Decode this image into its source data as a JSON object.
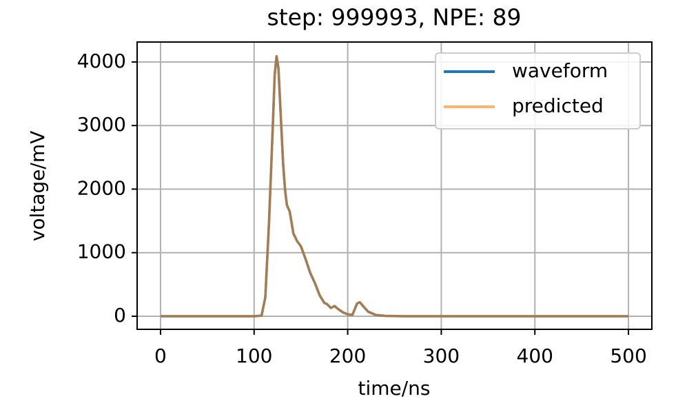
{
  "chart_data": {
    "type": "line",
    "title": "step: 999993, NPE: 89",
    "x_label": "time/ns",
    "y_label": "voltage/mV",
    "x": [
      0,
      100,
      108,
      112,
      116,
      120,
      122,
      124,
      126,
      128,
      131,
      133,
      135,
      138,
      142,
      146,
      150,
      155,
      160,
      165,
      170,
      175,
      178,
      182,
      186,
      190,
      195,
      200,
      205,
      210,
      213,
      217,
      222,
      230,
      240,
      260,
      500
    ],
    "series": [
      {
        "name": "waveform",
        "color": "#1f77b4",
        "opacity": 1,
        "values": [
          0,
          0,
          10,
          300,
          1500,
          3000,
          3800,
          4090,
          3900,
          3300,
          2400,
          2000,
          1750,
          1650,
          1300,
          1180,
          1100,
          900,
          680,
          520,
          330,
          210,
          190,
          130,
          160,
          110,
          60,
          30,
          20,
          200,
          220,
          150,
          70,
          20,
          5,
          0,
          0
        ]
      },
      {
        "name": "predicted",
        "color": "#ff7f0e",
        "opacity": 0.6,
        "values": [
          0,
          0,
          10,
          300,
          1500,
          3000,
          3800,
          4090,
          3900,
          3300,
          2400,
          2000,
          1750,
          1650,
          1300,
          1180,
          1100,
          900,
          680,
          520,
          330,
          210,
          190,
          130,
          160,
          110,
          60,
          30,
          20,
          200,
          220,
          150,
          70,
          20,
          5,
          0,
          0
        ]
      }
    ],
    "xlim": [
      -25,
      525
    ],
    "xticks": [
      0,
      100,
      200,
      300,
      400,
      500
    ],
    "ylim": [
      -206,
      4314
    ],
    "yticks": [
      0,
      1000,
      2000,
      3000,
      4000
    ],
    "grid": true,
    "legend": "upper right"
  }
}
